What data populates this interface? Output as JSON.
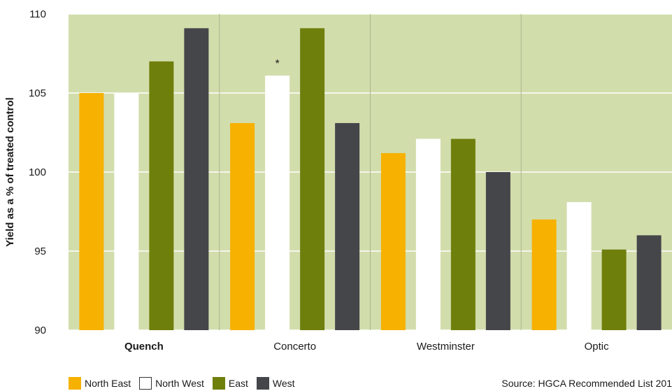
{
  "chart_data": {
    "type": "bar",
    "title": "",
    "xlabel": "",
    "ylabel": "Yield as a % of treated control",
    "ylim": [
      90,
      110
    ],
    "yticks": [
      90,
      95,
      100,
      105,
      110
    ],
    "categories": [
      "Quench",
      "Concerto",
      "Westminster",
      "Optic"
    ],
    "bold_category": "Quench",
    "series": [
      {
        "name": "North East",
        "color": "#f7b100",
        "values": [
          105,
          103.1,
          101.2,
          97
        ]
      },
      {
        "name": "North West",
        "color": "#ffffff",
        "values": [
          105,
          106.1,
          102.1,
          98.1
        ]
      },
      {
        "name": "East",
        "color": "#6f7f0c",
        "values": [
          107,
          109.1,
          102.1,
          95.1
        ]
      },
      {
        "name": "West",
        "color": "#44464a",
        "values": [
          109.1,
          103.1,
          100,
          96
        ]
      }
    ],
    "annotations": [
      {
        "category": "Concerto",
        "series": "North West",
        "text": "*"
      }
    ],
    "plot_background": "#d2ddac",
    "grid": true,
    "legend_position": "bottom-left"
  },
  "source_text": "Source: HGCA Recommended List 201"
}
